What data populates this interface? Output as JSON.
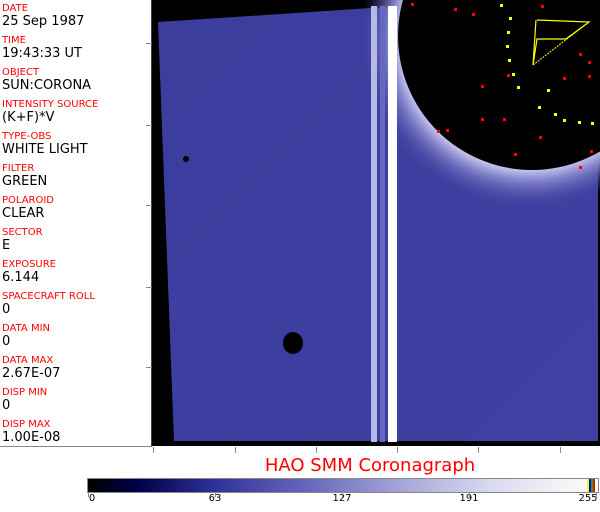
{
  "header_fields": [
    {
      "label": "DATE",
      "value": "25 Sep 1987"
    },
    {
      "label": "TIME",
      "value": "19:43:33 UT"
    },
    {
      "label": "OBJECT",
      "value": "SUN:CORONA"
    },
    {
      "label": "INTENSITY SOURCE",
      "value": "(K+F)*V"
    },
    {
      "label": "TYPE-OBS",
      "value": "WHITE LIGHT"
    },
    {
      "label": "FILTER",
      "value": "GREEN"
    },
    {
      "label": "POLAROID",
      "value": "CLEAR"
    },
    {
      "label": "SECTOR",
      "value": "E"
    },
    {
      "label": "EXPOSURE",
      "value": "6.144"
    },
    {
      "label": "SPACECRAFT ROLL",
      "value": "0"
    },
    {
      "label": "DATA MIN",
      "value": "0"
    },
    {
      "label": "DATA MAX",
      "value": "2.67E-07"
    },
    {
      "label": "DISP MIN",
      "value": "0"
    },
    {
      "label": "DISP MAX",
      "value": "1.00E-08"
    }
  ],
  "title": "HAO  SMM Coronagraph",
  "colorbar": {
    "ticks": [
      "0",
      "63",
      "127",
      "191",
      "255"
    ],
    "end_colors": [
      "#ffff00",
      "#0000ff",
      "#00c000",
      "#ff0000"
    ]
  },
  "colors": {
    "label": "#ff0000",
    "image_field": "#3a3c9c",
    "occulter": "#000000",
    "marker_red": "#ff0000",
    "marker_yellow": "#ffff00"
  }
}
